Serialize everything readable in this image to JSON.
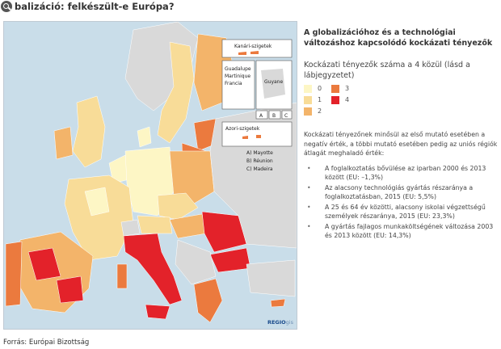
{
  "header": {
    "title": "balizáció: felkészült-e Európa?",
    "zoom_icon": "magnifier-icon"
  },
  "map": {
    "insets": {
      "kanari": "Kanári-szigetek",
      "guadalupe_1": "Guadalupe",
      "guadalupe_2": "Martinique",
      "guadalupe_3": "Francia",
      "guyane": "Guyane",
      "azori": "Azori-szigetek",
      "letter_a": "A",
      "letter_b": "B",
      "letter_c": "C"
    },
    "inset_notes": [
      "A) Mayotte",
      "B) Réunion",
      "C) Madeira"
    ],
    "logo_main": "REGIO",
    "logo_sub": "gis"
  },
  "panel": {
    "title": "A globalizációhoz és a technológiai változáshoz kapcsolódó kockázati tényezők",
    "legend_title": "Kockázati tényezők száma a 4 közül (lásd a lábjegyzetet)",
    "legend": [
      {
        "label": "0",
        "color": "#fdf6c5"
      },
      {
        "label": "1",
        "color": "#f8dc98"
      },
      {
        "label": "2",
        "color": "#f3b46a"
      },
      {
        "label": "3",
        "color": "#eb7a3e"
      },
      {
        "label": "4",
        "color": "#e3222a"
      }
    ],
    "description": "Kockázati tényezőnek minősül az első mutató esetében a negatív érték, a többi mutató esetében pedig az uniós régiók átlagát meghaladó érték:",
    "bullets": [
      "A foglalkoztatás bővülése az iparban 2000 és 2013 között (EU: –1,3%)",
      "Az alacsony technológiás gyártás részaránya a foglalkoztatásban, 2015 (EU: 5,5%)",
      "A 25 és 64 év közötti, alacsony iskolai végzettségű személyek részaránya, 2015 (EU: 23,3%)",
      "A gyártás fajlagos munkaköltségének változása 2003 és 2013 között (EU: 14,3%)"
    ]
  },
  "source": "Forrás: Európai Bizottság"
}
